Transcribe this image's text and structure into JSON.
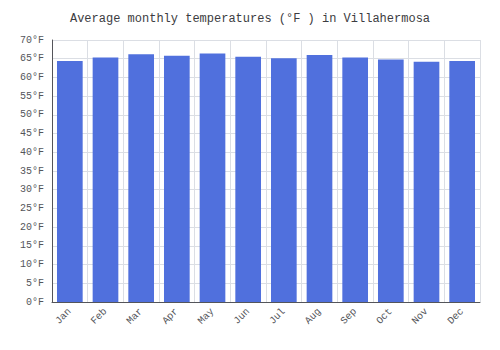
{
  "chart_data": {
    "type": "bar",
    "title": "Average monthly temperatures (°F ) in Villahermosa",
    "categories": [
      "Jan",
      "Feb",
      "Mar",
      "Apr",
      "May",
      "Jun",
      "Jul",
      "Aug",
      "Sep",
      "Oct",
      "Nov",
      "Dec"
    ],
    "values": [
      64.4,
      65.3,
      66.2,
      65.8,
      66.4,
      65.5,
      65.1,
      66.0,
      65.3,
      64.8,
      64.2,
      64.4
    ],
    "ylim": [
      0,
      70
    ],
    "yticks": [
      {
        "value": 0,
        "label": "0°F"
      },
      {
        "value": 5,
        "label": "5°F"
      },
      {
        "value": 10,
        "label": "10°F"
      },
      {
        "value": 15,
        "label": "15°F"
      },
      {
        "value": 20,
        "label": "20°F"
      },
      {
        "value": 25,
        "label": "25°F"
      },
      {
        "value": 30,
        "label": "30°F"
      },
      {
        "value": 35,
        "label": "35°F"
      },
      {
        "value": 40,
        "label": "40°F"
      },
      {
        "value": 45,
        "label": "45°F"
      },
      {
        "value": 50,
        "label": "50°F"
      },
      {
        "value": 55,
        "label": "55°F"
      },
      {
        "value": 60,
        "label": "60°F"
      },
      {
        "value": 65,
        "label": "65°F"
      },
      {
        "value": 70,
        "label": "70°F"
      }
    ],
    "grid": true
  }
}
